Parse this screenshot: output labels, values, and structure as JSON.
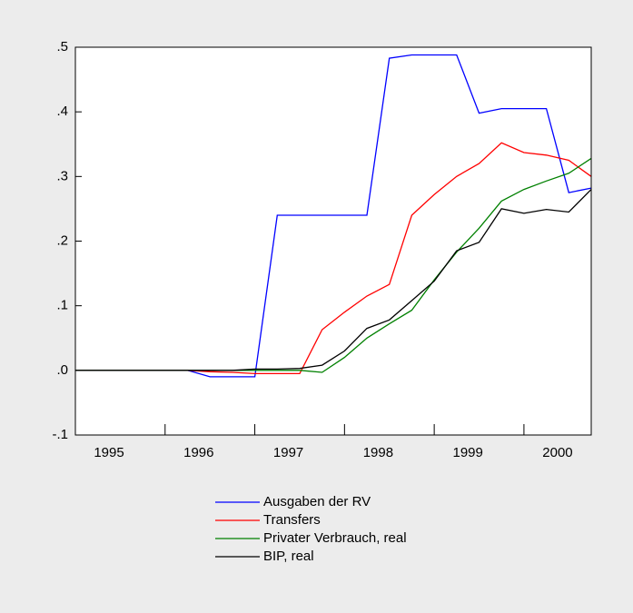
{
  "chart_data": {
    "type": "line",
    "categories": [
      "1995",
      null,
      null,
      null,
      "1996",
      null,
      null,
      null,
      "1997",
      null,
      null,
      null,
      "1998",
      null,
      null,
      null,
      "1999",
      null,
      null,
      null,
      "2000",
      null,
      null,
      null
    ],
    "ylim": [
      -0.1,
      0.5
    ],
    "yticks": [
      {
        "value": -0.1,
        "label": "-.1"
      },
      {
        "value": 0.0,
        "label": ".0"
      },
      {
        "value": 0.1,
        "label": ".1"
      },
      {
        "value": 0.2,
        "label": ".2"
      },
      {
        "value": 0.3,
        "label": ".3"
      },
      {
        "value": 0.4,
        "label": ".4"
      },
      {
        "value": 0.5,
        "label": ".5"
      }
    ],
    "series": [
      {
        "name": "Ausgaben der RV",
        "color": "#0000ff",
        "values": [
          0,
          0,
          0,
          0,
          0,
          0,
          -0.01,
          -0.01,
          -0.01,
          0.24,
          0.24,
          0.24,
          0.24,
          0.24,
          0.483,
          0.488,
          0.488,
          0.488,
          0.398,
          0.405,
          0.405,
          0.405,
          0.275,
          0.282
        ]
      },
      {
        "name": "Transfers",
        "color": "#ff0000",
        "values": [
          0,
          0,
          0,
          0,
          0,
          0,
          -0.002,
          -0.003,
          -0.005,
          -0.005,
          -0.005,
          0.063,
          0.09,
          0.115,
          0.133,
          0.24,
          0.272,
          0.3,
          0.32,
          0.352,
          0.337,
          0.333,
          0.325,
          0.3
        ]
      },
      {
        "name": "Privater Verbrauch, real",
        "color": "#008000",
        "values": [
          0,
          0,
          0,
          0,
          0,
          0,
          0,
          0,
          0,
          0,
          0,
          -0.003,
          0.02,
          0.05,
          0.072,
          0.093,
          0.14,
          0.183,
          0.22,
          0.262,
          0.28,
          0.293,
          0.305,
          0.328
        ]
      },
      {
        "name": "BIP, real",
        "color": "#000000",
        "values": [
          0,
          0,
          0,
          0,
          0,
          0,
          0,
          0,
          0.002,
          0.002,
          0.003,
          0.008,
          0.03,
          0.065,
          0.078,
          0.108,
          0.138,
          0.185,
          0.198,
          0.25,
          0.243,
          0.249,
          0.245,
          0.28
        ]
      }
    ]
  }
}
